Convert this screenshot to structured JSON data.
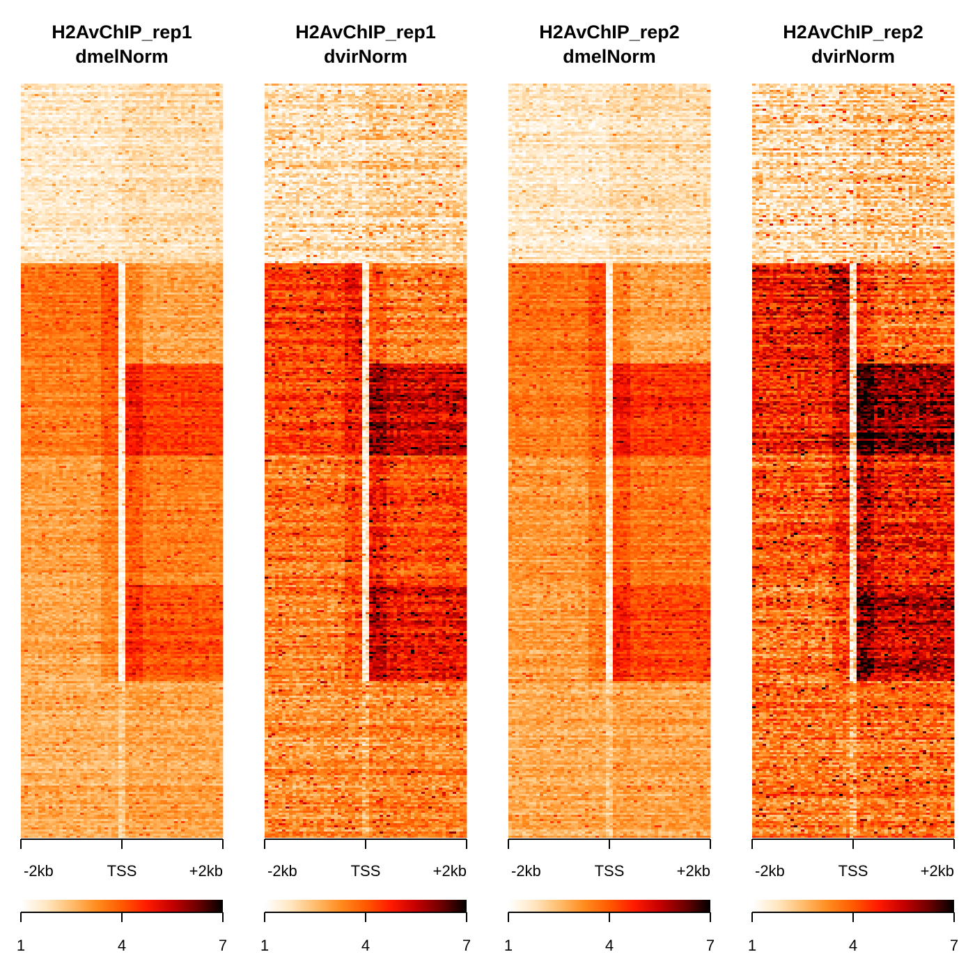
{
  "chart_data": [
    {
      "type": "heatmap",
      "title": [
        "H2AvChIP_rep1",
        "dmelNorm"
      ],
      "x_ticks": [
        "-2kb",
        "TSS",
        "+2kb"
      ],
      "colorbar": {
        "ticks": [
          "1",
          "4",
          "7"
        ],
        "range": [
          1,
          7
        ]
      },
      "block_boundaries": [
        0.237,
        0.37,
        0.492,
        0.663,
        0.792
      ],
      "intensity": 0.42
    },
    {
      "type": "heatmap",
      "title": [
        "H2AvChIP_rep1",
        "dvirNorm"
      ],
      "x_ticks": [
        "-2kb",
        "TSS",
        "+2kb"
      ],
      "colorbar": {
        "ticks": [
          "1",
          "4",
          "7"
        ],
        "range": [
          1,
          7
        ]
      },
      "block_boundaries": [
        0.237,
        0.37,
        0.492,
        0.663,
        0.792
      ],
      "intensity": 0.7
    },
    {
      "type": "heatmap",
      "title": [
        "H2AvChIP_rep2",
        "dmelNorm"
      ],
      "x_ticks": [
        "-2kb",
        "TSS",
        "+2kb"
      ],
      "colorbar": {
        "ticks": [
          "1",
          "4",
          "7"
        ],
        "range": [
          1,
          7
        ]
      },
      "block_boundaries": [
        0.237,
        0.37,
        0.492,
        0.663,
        0.792
      ],
      "intensity": 0.45
    },
    {
      "type": "heatmap",
      "title": [
        "H2AvChIP_rep2",
        "dvirNorm"
      ],
      "x_ticks": [
        "-2kb",
        "TSS",
        "+2kb"
      ],
      "colorbar": {
        "ticks": [
          "1",
          "4",
          "7"
        ],
        "range": [
          1,
          7
        ]
      },
      "block_boundaries": [
        0.237,
        0.37,
        0.492,
        0.663,
        0.792
      ],
      "intensity": 0.9
    }
  ],
  "palette": {
    "colorscale": [
      "#ffffff",
      "#ffe7c2",
      "#ffbd6e",
      "#ff8c1e",
      "#ff5a00",
      "#ff1a00",
      "#c40000",
      "#6e0000",
      "#000000"
    ]
  }
}
